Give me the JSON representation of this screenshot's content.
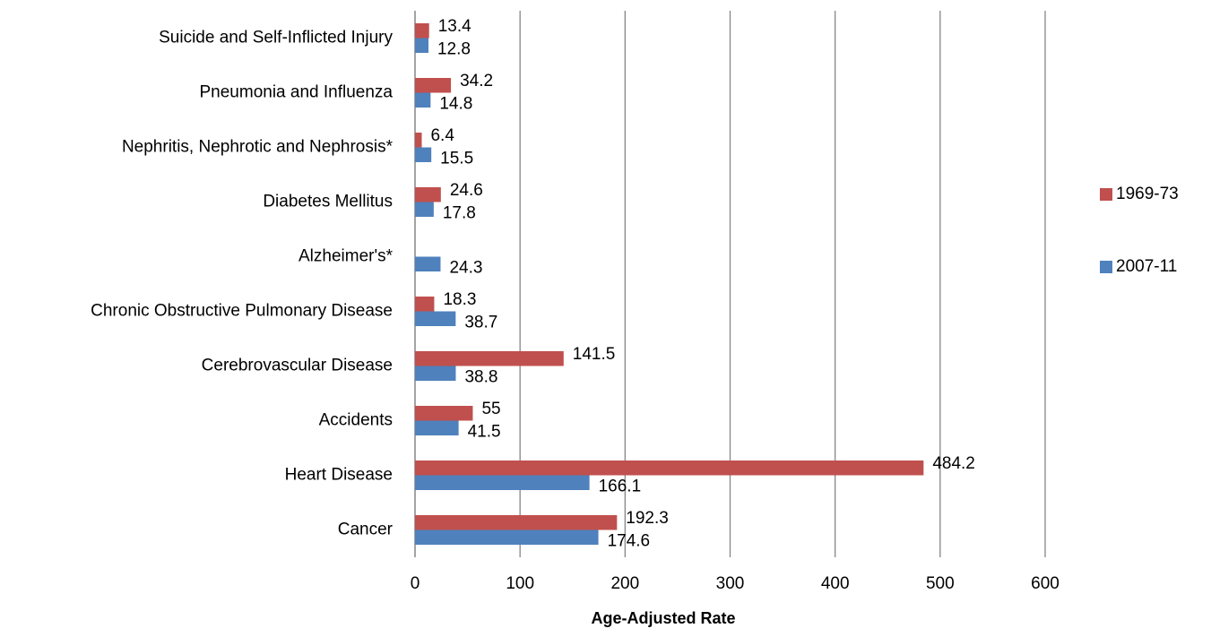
{
  "chart_data": {
    "type": "hbar",
    "x_label": "Age-Adjusted Rate",
    "categories": [
      "Suicide and Self-Inflicted Injury",
      "Pneumonia and Influenza",
      "Nephritis, Nephrotic and Nephrosis*",
      "Diabetes Mellitus",
      "Alzheimer's*",
      "Chronic Obstructive Pulmonary Disease",
      "Cerebrovascular Disease",
      "Accidents",
      "Heart Disease",
      "Cancer"
    ],
    "series": [
      {
        "name": "1969-73",
        "color": "#c0504d",
        "values": [
          13.4,
          34.2,
          6.4,
          24.6,
          null,
          18.3,
          141.5,
          55,
          484.2,
          192.3
        ]
      },
      {
        "name": "2007-11",
        "color": "#4f81bd",
        "values": [
          12.8,
          14.8,
          15.5,
          17.8,
          24.3,
          38.7,
          38.8,
          41.5,
          166.1,
          174.6
        ]
      }
    ],
    "xlim": [
      0,
      600
    ],
    "xticks": [
      0,
      100,
      200,
      300,
      400,
      500,
      600
    ],
    "grid": true,
    "legend": "right"
  }
}
